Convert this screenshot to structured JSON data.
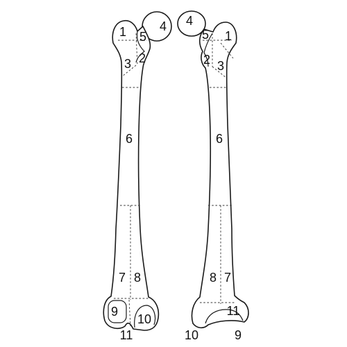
{
  "diagram": {
    "left_femur": {
      "labels": [
        "1",
        "2",
        "3",
        "4",
        "5",
        "6",
        "7",
        "8",
        "9",
        "10",
        "11"
      ]
    },
    "right_femur": {
      "labels": [
        "1",
        "2",
        "3",
        "4",
        "5",
        "6",
        "7",
        "8",
        "9",
        "10",
        "11"
      ]
    }
  }
}
